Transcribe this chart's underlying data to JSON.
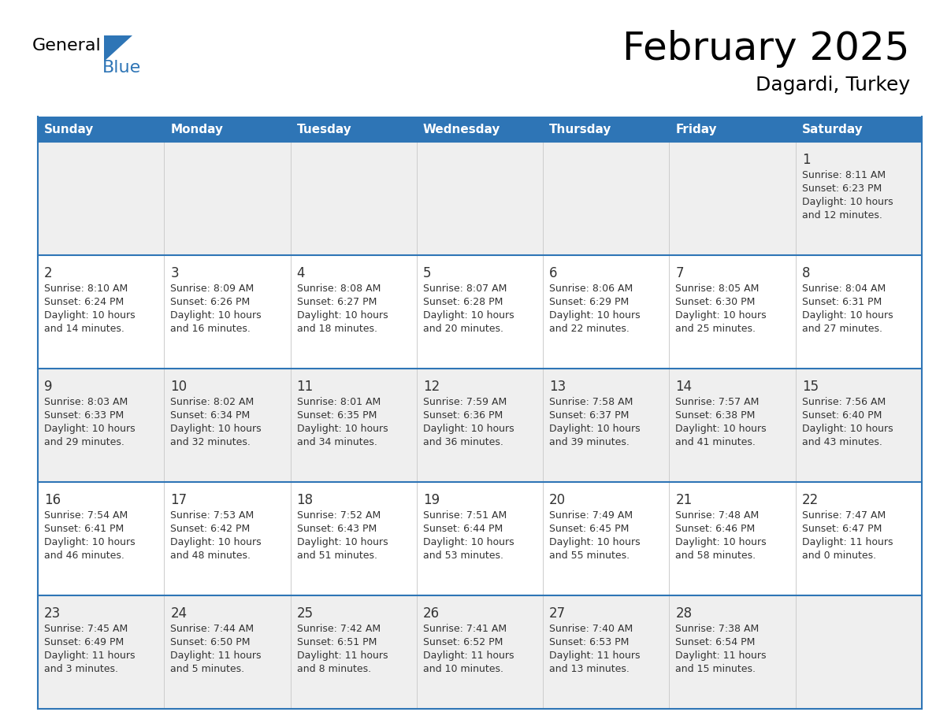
{
  "title": "February 2025",
  "subtitle": "Dagardi, Turkey",
  "header_bg": "#2E75B6",
  "header_text_color": "#FFFFFF",
  "cell_bg_light": "#EFEFEF",
  "cell_bg_white": "#FFFFFF",
  "row_line_color": "#2E75B6",
  "text_color": "#333333",
  "days_of_week": [
    "Sunday",
    "Monday",
    "Tuesday",
    "Wednesday",
    "Thursday",
    "Friday",
    "Saturday"
  ],
  "calendar_data": [
    [
      null,
      null,
      null,
      null,
      null,
      null,
      {
        "day": 1,
        "sunrise": "8:11 AM",
        "sunset": "6:23 PM",
        "daylight": "10 hours\nand 12 minutes."
      }
    ],
    [
      {
        "day": 2,
        "sunrise": "8:10 AM",
        "sunset": "6:24 PM",
        "daylight": "10 hours\nand 14 minutes."
      },
      {
        "day": 3,
        "sunrise": "8:09 AM",
        "sunset": "6:26 PM",
        "daylight": "10 hours\nand 16 minutes."
      },
      {
        "day": 4,
        "sunrise": "8:08 AM",
        "sunset": "6:27 PM",
        "daylight": "10 hours\nand 18 minutes."
      },
      {
        "day": 5,
        "sunrise": "8:07 AM",
        "sunset": "6:28 PM",
        "daylight": "10 hours\nand 20 minutes."
      },
      {
        "day": 6,
        "sunrise": "8:06 AM",
        "sunset": "6:29 PM",
        "daylight": "10 hours\nand 22 minutes."
      },
      {
        "day": 7,
        "sunrise": "8:05 AM",
        "sunset": "6:30 PM",
        "daylight": "10 hours\nand 25 minutes."
      },
      {
        "day": 8,
        "sunrise": "8:04 AM",
        "sunset": "6:31 PM",
        "daylight": "10 hours\nand 27 minutes."
      }
    ],
    [
      {
        "day": 9,
        "sunrise": "8:03 AM",
        "sunset": "6:33 PM",
        "daylight": "10 hours\nand 29 minutes."
      },
      {
        "day": 10,
        "sunrise": "8:02 AM",
        "sunset": "6:34 PM",
        "daylight": "10 hours\nand 32 minutes."
      },
      {
        "day": 11,
        "sunrise": "8:01 AM",
        "sunset": "6:35 PM",
        "daylight": "10 hours\nand 34 minutes."
      },
      {
        "day": 12,
        "sunrise": "7:59 AM",
        "sunset": "6:36 PM",
        "daylight": "10 hours\nand 36 minutes."
      },
      {
        "day": 13,
        "sunrise": "7:58 AM",
        "sunset": "6:37 PM",
        "daylight": "10 hours\nand 39 minutes."
      },
      {
        "day": 14,
        "sunrise": "7:57 AM",
        "sunset": "6:38 PM",
        "daylight": "10 hours\nand 41 minutes."
      },
      {
        "day": 15,
        "sunrise": "7:56 AM",
        "sunset": "6:40 PM",
        "daylight": "10 hours\nand 43 minutes."
      }
    ],
    [
      {
        "day": 16,
        "sunrise": "7:54 AM",
        "sunset": "6:41 PM",
        "daylight": "10 hours\nand 46 minutes."
      },
      {
        "day": 17,
        "sunrise": "7:53 AM",
        "sunset": "6:42 PM",
        "daylight": "10 hours\nand 48 minutes."
      },
      {
        "day": 18,
        "sunrise": "7:52 AM",
        "sunset": "6:43 PM",
        "daylight": "10 hours\nand 51 minutes."
      },
      {
        "day": 19,
        "sunrise": "7:51 AM",
        "sunset": "6:44 PM",
        "daylight": "10 hours\nand 53 minutes."
      },
      {
        "day": 20,
        "sunrise": "7:49 AM",
        "sunset": "6:45 PM",
        "daylight": "10 hours\nand 55 minutes."
      },
      {
        "day": 21,
        "sunrise": "7:48 AM",
        "sunset": "6:46 PM",
        "daylight": "10 hours\nand 58 minutes."
      },
      {
        "day": 22,
        "sunrise": "7:47 AM",
        "sunset": "6:47 PM",
        "daylight": "11 hours\nand 0 minutes."
      }
    ],
    [
      {
        "day": 23,
        "sunrise": "7:45 AM",
        "sunset": "6:49 PM",
        "daylight": "11 hours\nand 3 minutes."
      },
      {
        "day": 24,
        "sunrise": "7:44 AM",
        "sunset": "6:50 PM",
        "daylight": "11 hours\nand 5 minutes."
      },
      {
        "day": 25,
        "sunrise": "7:42 AM",
        "sunset": "6:51 PM",
        "daylight": "11 hours\nand 8 minutes."
      },
      {
        "day": 26,
        "sunrise": "7:41 AM",
        "sunset": "6:52 PM",
        "daylight": "11 hours\nand 10 minutes."
      },
      {
        "day": 27,
        "sunrise": "7:40 AM",
        "sunset": "6:53 PM",
        "daylight": "11 hours\nand 13 minutes."
      },
      {
        "day": 28,
        "sunrise": "7:38 AM",
        "sunset": "6:54 PM",
        "daylight": "11 hours\nand 15 minutes."
      },
      null
    ]
  ]
}
